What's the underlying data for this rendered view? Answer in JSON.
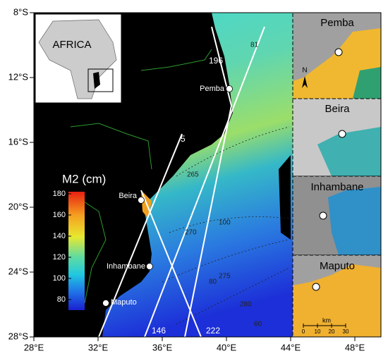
{
  "map": {
    "xticks": [
      {
        "value": 28,
        "label": "28°E"
      },
      {
        "value": 32,
        "label": "32°E"
      },
      {
        "value": 36,
        "label": "36°E"
      },
      {
        "value": 40,
        "label": "40°E"
      },
      {
        "value": 44,
        "label": "44°E"
      },
      {
        "value": 48,
        "label": "48°E"
      }
    ],
    "yticks": [
      {
        "value": -8,
        "label": "8°S"
      },
      {
        "value": -12,
        "label": "12°S"
      },
      {
        "value": -16,
        "label": "16°S"
      },
      {
        "value": -20,
        "label": "20°S"
      },
      {
        "value": -24,
        "label": "24°S"
      },
      {
        "value": -28,
        "label": "28°S"
      }
    ]
  },
  "locator": {
    "label": "AFRICA"
  },
  "colorbar": {
    "title": "M2 (cm)",
    "ticks": [
      80,
      100,
      120,
      140,
      160,
      180
    ]
  },
  "cities": [
    "Pemba",
    "Beira",
    "Inhambane",
    "Maputo"
  ],
  "tracks": [
    "196",
    "81",
    "5",
    "146",
    "222"
  ],
  "contour_labels": [
    "265",
    "270",
    "275",
    "280",
    "100",
    "80",
    "60"
  ],
  "insets": [
    {
      "title": "Pemba",
      "north": "N"
    },
    {
      "title": "Beira"
    },
    {
      "title": "Inhambane"
    },
    {
      "title": "Maputo",
      "scale_unit": "km",
      "scale_ticks": [
        0,
        10,
        20,
        30
      ]
    }
  ]
}
